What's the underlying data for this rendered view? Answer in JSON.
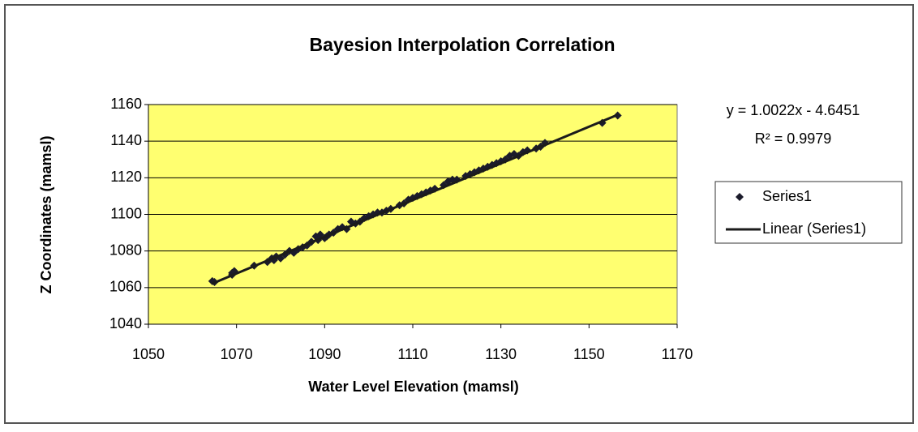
{
  "chart_data": {
    "type": "scatter",
    "title": "Bayesion Interpolation Correlation",
    "x_label": "Water Level Elevation (mamsl)",
    "y_label": "Z Coordinates (mamsl)",
    "xlim": [
      1050,
      1170
    ],
    "xticks": [
      1050,
      1070,
      1090,
      1110,
      1130,
      1150,
      1170
    ],
    "ylim": [
      1040,
      1160
    ],
    "yticks": [
      1040,
      1060,
      1080,
      1100,
      1120,
      1140,
      1160
    ],
    "grid": true,
    "legend": "right",
    "plot_background": "#ffff70",
    "series": [
      {
        "name": "Series1",
        "color": "#1b1b2b",
        "x": [
          1064.5,
          1065,
          1069,
          1069,
          1069.5,
          1074,
          1077,
          1078,
          1078.5,
          1079,
          1080,
          1081,
          1082,
          1083,
          1084,
          1085,
          1086,
          1087,
          1088,
          1088.5,
          1089,
          1090,
          1090.5,
          1091,
          1092,
          1093,
          1094,
          1095,
          1096,
          1097,
          1098,
          1099,
          1100,
          1101,
          1102,
          1103,
          1104,
          1105,
          1107,
          1108,
          1109,
          1110,
          1111,
          1112,
          1113,
          1114,
          1115,
          1117,
          1118,
          1119,
          1120,
          1122,
          1123,
          1124,
          1125,
          1126,
          1127,
          1128,
          1129,
          1130,
          1131,
          1132,
          1133,
          1134,
          1135,
          1136,
          1138,
          1139,
          1140,
          1153,
          1156.5
        ],
        "values": [
          1063.5,
          1063,
          1068,
          1067,
          1069,
          1072,
          1074,
          1076,
          1075,
          1077,
          1076,
          1078,
          1080,
          1079,
          1081,
          1082,
          1083,
          1085,
          1088,
          1086,
          1089,
          1087,
          1088,
          1089,
          1090,
          1092,
          1093,
          1092,
          1096,
          1095,
          1096,
          1098,
          1099,
          1100,
          1101,
          1101,
          1102,
          1103,
          1105,
          1106,
          1108,
          1109,
          1110,
          1111,
          1112,
          1113,
          1114,
          1116,
          1118,
          1119,
          1119,
          1121,
          1122,
          1123,
          1124,
          1125,
          1126,
          1127,
          1128,
          1129,
          1130,
          1132,
          1133,
          1132,
          1134,
          1135,
          1136,
          1137,
          1139,
          1150,
          1154
        ]
      }
    ],
    "trendline": {
      "name": "Linear (Series1)",
      "color": "#1b1b1b",
      "x": [
        1064.5,
        1156.5
      ],
      "values": [
        1062.2,
        1154.4
      ],
      "equation": "y = 1.0022x - 4.6451",
      "r_squared": "R² = 0.9979"
    }
  }
}
